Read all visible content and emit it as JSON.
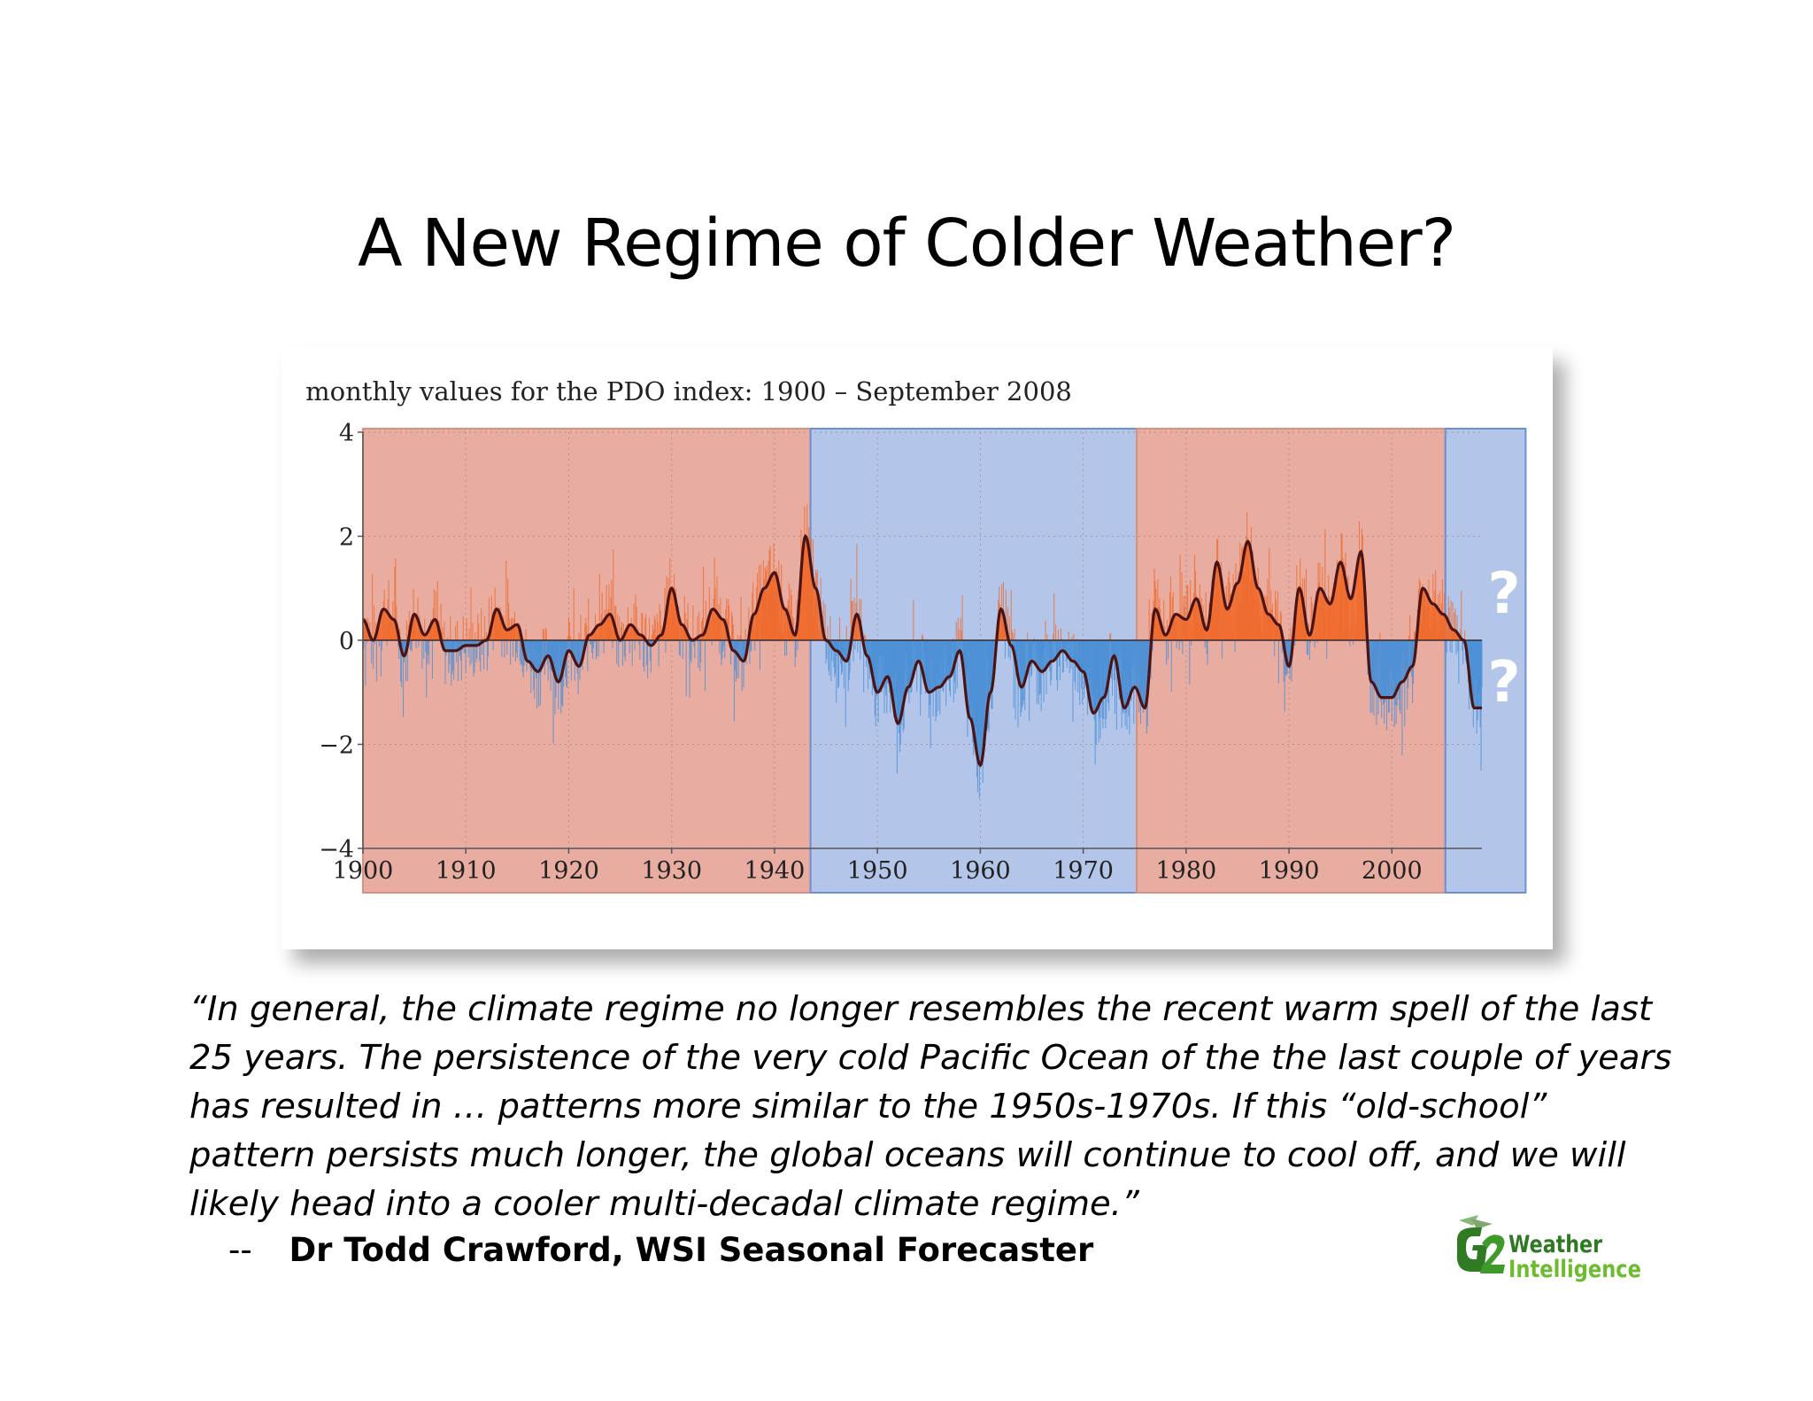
{
  "slide": {
    "title": "A New Regime of Colder Weather?",
    "quote_lines": [
      "“In general, the climate regime no longer resembles the recent warm spell of the last",
      "25 years.  The persistence of the very cold Pacific Ocean of the the last couple of years",
      "has resulted in … patterns more similar to the 1950s-1970s.   If this “old-school”",
      "pattern persists much longer, the global oceans will continue to cool off, and we will",
      "likely head into a cooler multi-decadal climate regime.”"
    ],
    "attribution_dash": "--",
    "attribution": "Dr Todd Crawford, WSI Seasonal Forecaster",
    "logo": {
      "line1": "Weather",
      "line2": "Intelligence",
      "mark": "G2"
    },
    "question_marks": [
      "?",
      "?"
    ]
  },
  "colors": {
    "warm_regime": "#e8aca0",
    "cool_regime": "#b3c6ea",
    "positive_bars": "#f06a2c",
    "negative_bars": "#4b8fd6",
    "smoothed_line": "#4a1414",
    "logo_green": "#3d9a2a"
  },
  "chart_data": {
    "type": "bar",
    "title": "monthly values for the PDO index: 1900 – September 2008",
    "xlabel": "",
    "ylabel": "",
    "xlim": [
      1900,
      2008.75
    ],
    "ylim": [
      -4,
      4
    ],
    "x_ticks": [
      1900,
      1910,
      1920,
      1930,
      1940,
      1950,
      1960,
      1970,
      1980,
      1990,
      2000
    ],
    "y_ticks": [
      4,
      2,
      0,
      -2,
      -4
    ],
    "y_tick_labels": [
      "4",
      "2",
      "0",
      "−2",
      "−4"
    ],
    "grid": true,
    "regimes": [
      {
        "start": 1900,
        "end": 1943.5,
        "phase": "warm"
      },
      {
        "start": 1943.5,
        "end": 1975.2,
        "phase": "cool"
      },
      {
        "start": 1975.2,
        "end": 2005.2,
        "phase": "warm"
      },
      {
        "start": 2005.2,
        "end": 2013,
        "phase": "cool"
      }
    ],
    "smoothed_series": {
      "x": [
        1900,
        1901,
        1902,
        1903,
        1904,
        1905,
        1906,
        1907,
        1908,
        1909,
        1910,
        1911,
        1912,
        1913,
        1914,
        1915,
        1916,
        1917,
        1918,
        1919,
        1920,
        1921,
        1922,
        1923,
        1924,
        1925,
        1926,
        1927,
        1928,
        1929,
        1930,
        1931,
        1932,
        1933,
        1934,
        1935,
        1936,
        1937,
        1938,
        1939,
        1940,
        1941,
        1942,
        1943,
        1944,
        1945,
        1946,
        1947,
        1948,
        1949,
        1950,
        1951,
        1952,
        1953,
        1954,
        1955,
        1956,
        1957,
        1958,
        1959,
        1960,
        1961,
        1962,
        1963,
        1964,
        1965,
        1966,
        1967,
        1968,
        1969,
        1970,
        1971,
        1972,
        1973,
        1974,
        1975,
        1976,
        1977,
        1978,
        1979,
        1980,
        1981,
        1982,
        1983,
        1984,
        1985,
        1986,
        1987,
        1988,
        1989,
        1990,
        1991,
        1992,
        1993,
        1994,
        1995,
        1996,
        1997,
        1998,
        1999,
        2000,
        2001,
        2002,
        2003,
        2004,
        2005,
        2006,
        2007,
        2008
      ],
      "values": [
        0.4,
        0.0,
        0.6,
        0.4,
        -0.3,
        0.5,
        0.1,
        0.4,
        -0.2,
        -0.2,
        -0.1,
        -0.1,
        0.0,
        0.6,
        0.2,
        0.3,
        -0.4,
        -0.6,
        -0.3,
        -0.8,
        -0.2,
        -0.5,
        0.1,
        0.3,
        0.5,
        0.0,
        0.3,
        0.1,
        -0.1,
        0.1,
        1.0,
        0.3,
        0.0,
        0.1,
        0.6,
        0.4,
        -0.2,
        -0.4,
        0.5,
        1.0,
        1.3,
        0.6,
        0.1,
        2.0,
        1.0,
        0.0,
        -0.2,
        -0.4,
        0.5,
        -0.3,
        -1.0,
        -0.7,
        -1.6,
        -0.9,
        -0.4,
        -1.0,
        -0.9,
        -0.7,
        -0.2,
        -1.5,
        -2.4,
        -1.0,
        0.6,
        -0.1,
        -0.9,
        -0.4,
        -0.6,
        -0.4,
        -0.2,
        -0.4,
        -0.6,
        -1.4,
        -1.1,
        -0.3,
        -1.3,
        -0.9,
        -1.3,
        0.6,
        0.1,
        0.5,
        0.4,
        0.8,
        0.2,
        1.5,
        0.6,
        1.1,
        1.9,
        1.0,
        0.5,
        0.3,
        -0.5,
        1.0,
        0.1,
        1.0,
        0.7,
        1.5,
        0.8,
        1.7,
        -0.8,
        -1.1,
        -1.1,
        -0.8,
        -0.5,
        1.0,
        0.7,
        0.5,
        0.2,
        0.0,
        -1.3
      ]
    },
    "monthly_amplitude_note": ""
  }
}
